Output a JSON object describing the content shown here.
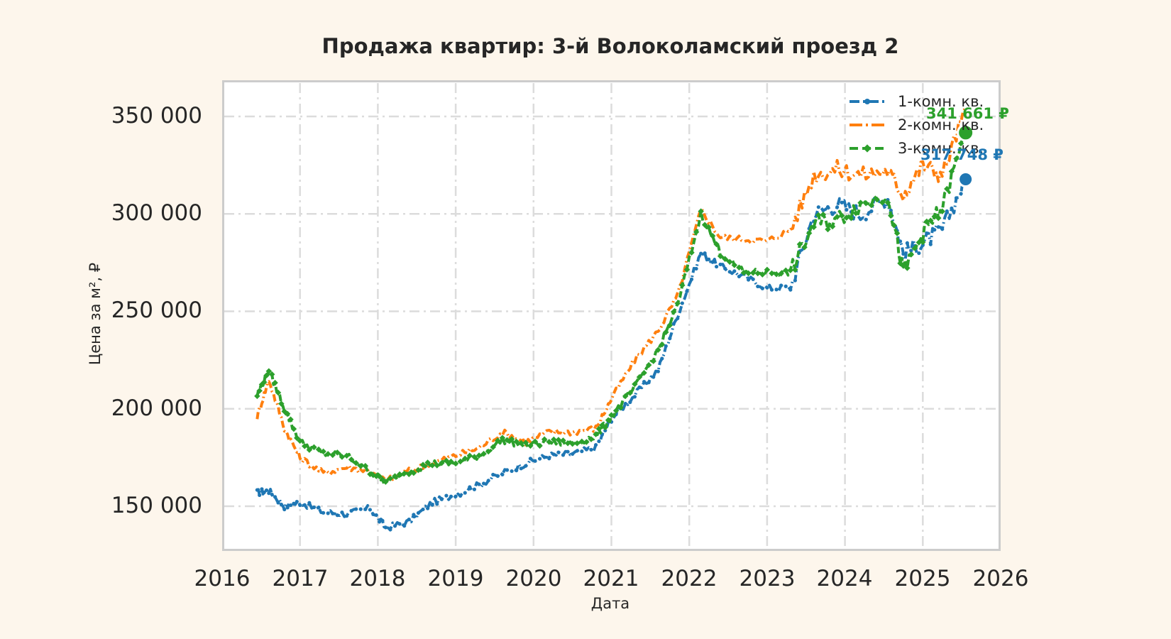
{
  "title": "Продажа квартир: 3-й Волоколамский проезд 2",
  "axes": {
    "ylabel": "Цена за м², ₽",
    "xlabel": "Дата",
    "yticks": [
      "350 000",
      "300 000",
      "250 000",
      "200 000",
      "150 000"
    ],
    "xticks": [
      "2016",
      "2017",
      "2018",
      "2019",
      "2020",
      "2021",
      "2022",
      "2023",
      "2024",
      "2025",
      "2026"
    ]
  },
  "legend": [
    {
      "label": "1-комн. кв.",
      "color": "#1f77b4"
    },
    {
      "label": "2-комн. кв.",
      "color": "#ff7f0e"
    },
    {
      "label": "3-комн. кв.",
      "color": "#2ca02c"
    }
  ],
  "annotations": [
    {
      "text": "341 661 ₽",
      "color": "#2ca02c"
    },
    {
      "text": "317 748 ₽",
      "color": "#1f77b4"
    }
  ],
  "chart_data": {
    "type": "line",
    "title": "Продажа квартир: 3-й Волоколамский проезд 2",
    "xlabel": "Дата",
    "ylabel": "Цена за м², ₽",
    "xlim": [
      2016,
      2026
    ],
    "ylim": [
      127000,
      368000
    ],
    "grid": true,
    "legend_position": "upper right",
    "x": [
      2016.45,
      2016.6,
      2016.8,
      2017.0,
      2017.3,
      2017.6,
      2017.9,
      2018.1,
      2018.4,
      2018.7,
      2019.0,
      2019.3,
      2019.6,
      2019.9,
      2020.2,
      2020.5,
      2020.8,
      2021.0,
      2021.3,
      2021.6,
      2021.85,
      2022.15,
      2022.4,
      2022.7,
      2023.0,
      2023.3,
      2023.6,
      2023.9,
      2024.2,
      2024.55,
      2024.75,
      2025.0,
      2025.25,
      2025.55
    ],
    "series": [
      {
        "name": "1-комн. кв.",
        "color": "#1f77b4",
        "linestyle": "dashdot",
        "marker": "o",
        "values": [
          157000,
          158000,
          150000,
          152000,
          147000,
          146000,
          149000,
          139000,
          142000,
          152000,
          156000,
          161000,
          167000,
          172000,
          176000,
          177000,
          180000,
          195000,
          207000,
          220000,
          248000,
          280000,
          273000,
          268000,
          262000,
          262000,
          300000,
          305000,
          300000,
          308000,
          280000,
          285000,
          292000,
          317748
        ]
      },
      {
        "name": "2-комн. кв.",
        "color": "#ff7f0e",
        "linestyle": "dashdot",
        "marker": "none",
        "values": [
          196000,
          215000,
          190000,
          175000,
          167000,
          170000,
          168000,
          163000,
          168000,
          172000,
          176000,
          180000,
          188000,
          183000,
          188000,
          188000,
          190000,
          205000,
          225000,
          240000,
          258000,
          302000,
          288000,
          287000,
          286000,
          292000,
          320000,
          323000,
          320000,
          322000,
          310000,
          325000,
          320000,
          354000
        ]
      },
      {
        "name": "3-комн. кв.",
        "color": "#2ca02c",
        "linestyle": "dashed",
        "marker": "D",
        "values": [
          207000,
          220000,
          200000,
          183000,
          177000,
          176000,
          168000,
          162000,
          168000,
          172000,
          172000,
          176000,
          184000,
          181000,
          183000,
          182000,
          186000,
          196000,
          211000,
          230000,
          253000,
          300000,
          280000,
          270000,
          270000,
          270000,
          295000,
          297000,
          305000,
          310000,
          270000,
          290000,
          303000,
          341661
        ]
      }
    ]
  }
}
